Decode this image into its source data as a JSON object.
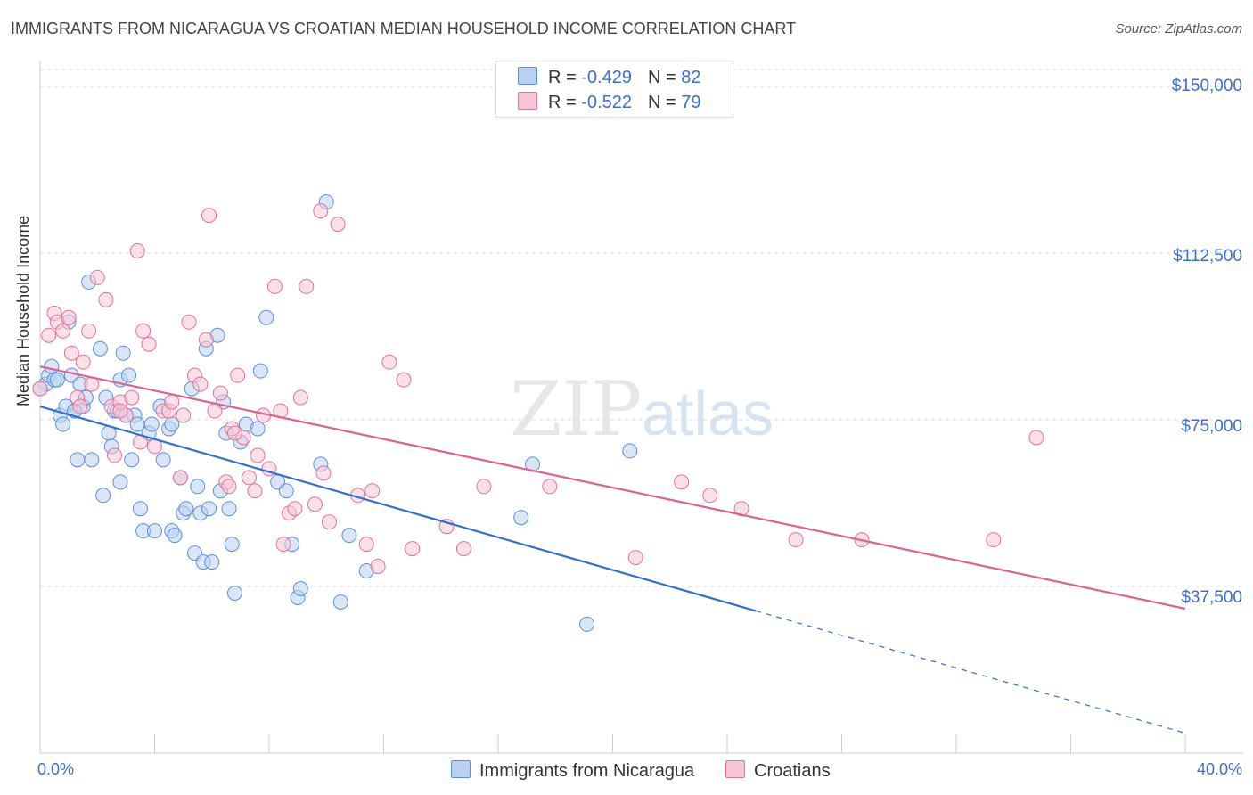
{
  "title": "IMMIGRANTS FROM NICARAGUA VS CROATIAN MEDIAN HOUSEHOLD INCOME CORRELATION CHART",
  "source": "Source: ZipAtlas.com",
  "colors": {
    "blue": "#5b8fdc",
    "blue_fill": "#b9d2f3",
    "pink": "#e57098",
    "pink_fill": "#f7c6d6",
    "axis_text": "#3a6fd0"
  },
  "legend": [
    {
      "r_label": "R =",
      "r_value": "-0.429",
      "n_label": "N =",
      "n_value": "82"
    },
    {
      "r_label": "R =",
      "r_value": "-0.522",
      "n_label": "N =",
      "n_value": "79"
    }
  ],
  "chart_data": {
    "type": "scatter",
    "ylabel": "Median Household Income",
    "xlabel": "",
    "xlim": [
      0,
      40
    ],
    "ylim": [
      0,
      157500
    ],
    "x_tick_labels": [
      "0.0%",
      "40.0%"
    ],
    "y_ticks": [
      37500,
      75000,
      112500,
      150000
    ],
    "y_tick_labels": [
      "$37,500",
      "$75,000",
      "$112,500",
      "$150,000"
    ],
    "grid": true,
    "watermark": "ZIPatlas",
    "series": [
      {
        "name": "Immigrants from Nicaragua",
        "color": "#5b8fdc",
        "trend": {
          "x": [
            0,
            25,
            40
          ],
          "y": [
            78000,
            32000,
            4500
          ],
          "solid_until": 25
        },
        "points": [
          [
            0.2,
            83
          ],
          [
            0.3,
            85
          ],
          [
            0.4,
            87
          ],
          [
            0.5,
            84
          ],
          [
            0.6,
            84
          ],
          [
            0.7,
            76
          ],
          [
            0.8,
            74
          ],
          [
            0.9,
            78
          ],
          [
            1.0,
            97
          ],
          [
            1.1,
            85
          ],
          [
            1.2,
            77
          ],
          [
            1.3,
            66
          ],
          [
            1.4,
            83
          ],
          [
            1.5,
            78
          ],
          [
            1.6,
            80
          ],
          [
            1.7,
            106
          ],
          [
            1.8,
            66
          ],
          [
            2.1,
            91
          ],
          [
            2.2,
            58
          ],
          [
            2.3,
            80
          ],
          [
            2.4,
            72
          ],
          [
            2.5,
            69
          ],
          [
            2.6,
            77
          ],
          [
            2.7,
            77
          ],
          [
            2.8,
            84
          ],
          [
            2.8,
            61
          ],
          [
            2.9,
            90
          ],
          [
            3.1,
            85
          ],
          [
            3.2,
            66
          ],
          [
            3.3,
            76
          ],
          [
            3.4,
            74
          ],
          [
            3.5,
            55
          ],
          [
            3.6,
            50
          ],
          [
            3.8,
            72
          ],
          [
            3.9,
            74
          ],
          [
            4.0,
            50
          ],
          [
            4.2,
            78
          ],
          [
            4.3,
            66
          ],
          [
            4.5,
            73
          ],
          [
            4.6,
            50
          ],
          [
            4.7,
            49
          ],
          [
            4.9,
            62
          ],
          [
            5.0,
            54
          ],
          [
            5.1,
            55
          ],
          [
            5.3,
            82
          ],
          [
            5.4,
            45
          ],
          [
            5.5,
            60
          ],
          [
            5.6,
            54
          ],
          [
            5.7,
            43
          ],
          [
            5.8,
            91
          ],
          [
            5.9,
            55
          ],
          [
            6.0,
            43
          ],
          [
            6.2,
            94
          ],
          [
            6.3,
            59
          ],
          [
            6.4,
            79
          ],
          [
            6.5,
            72
          ],
          [
            6.6,
            55
          ],
          [
            6.7,
            47
          ],
          [
            6.8,
            36
          ],
          [
            7.0,
            70
          ],
          [
            7.2,
            74
          ],
          [
            7.6,
            73
          ],
          [
            7.7,
            86
          ],
          [
            7.9,
            98
          ],
          [
            8.3,
            61
          ],
          [
            8.6,
            59
          ],
          [
            8.8,
            47
          ],
          [
            9.0,
            35
          ],
          [
            9.1,
            37
          ],
          [
            9.8,
            65
          ],
          [
            10.0,
            124
          ],
          [
            10.5,
            34
          ],
          [
            10.8,
            49
          ],
          [
            11.4,
            41
          ],
          [
            16.8,
            53
          ],
          [
            17.2,
            65
          ],
          [
            19.1,
            29
          ],
          [
            20.6,
            68
          ],
          [
            0.0,
            82
          ],
          [
            1.2,
            77
          ],
          [
            3.0,
            76
          ],
          [
            4.6,
            74
          ]
        ]
      },
      {
        "name": "Croatians",
        "color": "#e57098",
        "trend": {
          "x": [
            0,
            40
          ],
          "y": [
            87000,
            32500
          ],
          "solid_until": 40
        },
        "points": [
          [
            0.0,
            82
          ],
          [
            0.3,
            94
          ],
          [
            0.5,
            99
          ],
          [
            0.6,
            97
          ],
          [
            0.8,
            95
          ],
          [
            1.0,
            98
          ],
          [
            1.1,
            90
          ],
          [
            1.3,
            80
          ],
          [
            1.4,
            78
          ],
          [
            1.5,
            88
          ],
          [
            1.7,
            95
          ],
          [
            1.8,
            83
          ],
          [
            2.0,
            107
          ],
          [
            2.3,
            102
          ],
          [
            2.5,
            78
          ],
          [
            2.6,
            67
          ],
          [
            2.8,
            79
          ],
          [
            3.0,
            76
          ],
          [
            3.2,
            80
          ],
          [
            3.4,
            113
          ],
          [
            3.5,
            70
          ],
          [
            3.6,
            95
          ],
          [
            3.8,
            92
          ],
          [
            4.0,
            69
          ],
          [
            4.3,
            77
          ],
          [
            4.5,
            77
          ],
          [
            4.6,
            79
          ],
          [
            4.9,
            62
          ],
          [
            5.0,
            76
          ],
          [
            5.2,
            97
          ],
          [
            5.4,
            85
          ],
          [
            5.6,
            83
          ],
          [
            5.8,
            93
          ],
          [
            5.9,
            121
          ],
          [
            6.1,
            77
          ],
          [
            6.3,
            81
          ],
          [
            6.5,
            61
          ],
          [
            6.6,
            60
          ],
          [
            6.7,
            73
          ],
          [
            6.9,
            85
          ],
          [
            7.1,
            71
          ],
          [
            7.3,
            62
          ],
          [
            7.5,
            59
          ],
          [
            7.6,
            67
          ],
          [
            7.8,
            76
          ],
          [
            8.0,
            64
          ],
          [
            8.2,
            105
          ],
          [
            8.4,
            77
          ],
          [
            8.5,
            47
          ],
          [
            8.7,
            54
          ],
          [
            8.9,
            55
          ],
          [
            9.1,
            80
          ],
          [
            9.3,
            105
          ],
          [
            9.6,
            56
          ],
          [
            9.8,
            122
          ],
          [
            9.9,
            63
          ],
          [
            10.1,
            52
          ],
          [
            10.4,
            119
          ],
          [
            11.1,
            58
          ],
          [
            11.4,
            47
          ],
          [
            11.6,
            59
          ],
          [
            11.8,
            42
          ],
          [
            12.2,
            88
          ],
          [
            12.7,
            84
          ],
          [
            13.0,
            46
          ],
          [
            14.2,
            51
          ],
          [
            14.8,
            46
          ],
          [
            15.5,
            60
          ],
          [
            17.8,
            60
          ],
          [
            20.8,
            44
          ],
          [
            22.4,
            61
          ],
          [
            23.4,
            58
          ],
          [
            24.5,
            55
          ],
          [
            26.4,
            48
          ],
          [
            28.7,
            48
          ],
          [
            33.3,
            48
          ],
          [
            34.8,
            71
          ],
          [
            2.8,
            77
          ],
          [
            6.8,
            72
          ]
        ]
      }
    ],
    "point_unit": "points are [x percent, y thousands of dollars]"
  }
}
